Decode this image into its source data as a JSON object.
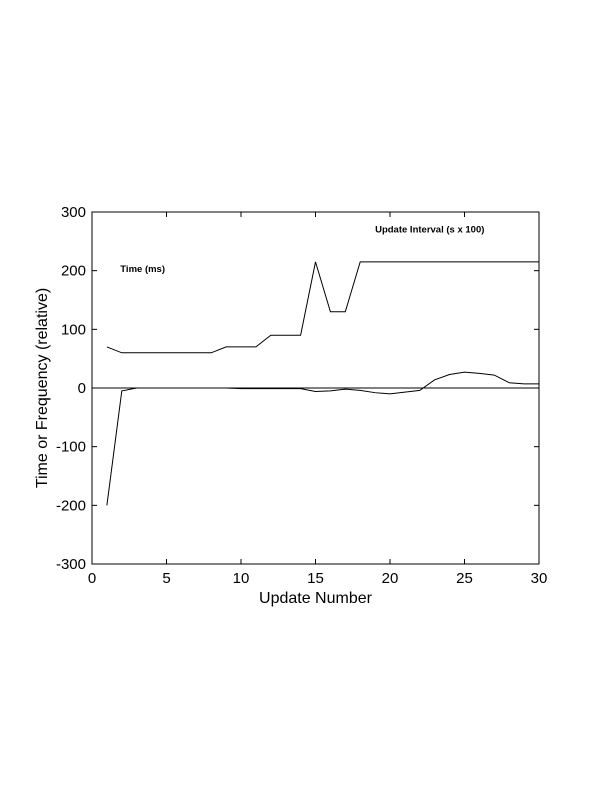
{
  "chart_data": {
    "type": "line",
    "xlabel": "Update Number",
    "ylabel": "Time or Frequency (relative)",
    "xlim": [
      0,
      30
    ],
    "ylim": [
      -300,
      300
    ],
    "xticks": [
      0,
      5,
      10,
      15,
      20,
      25,
      30
    ],
    "yticks": [
      300,
      200,
      100,
      0,
      -100,
      -200,
      -300
    ],
    "grid": false,
    "annotations": [
      {
        "id": "time",
        "text": "Time (ms)",
        "x": 1.9,
        "y": 198
      },
      {
        "id": "update-interval",
        "text": "Update Interval (s x 100)",
        "x": 19,
        "y": 265
      }
    ],
    "series": [
      {
        "x": [
          1,
          2,
          3,
          4,
          5,
          6,
          7,
          8,
          9,
          10,
          11,
          12,
          13,
          14,
          15,
          16,
          17,
          18,
          19,
          20,
          21,
          22,
          23,
          24,
          25,
          26,
          27,
          28,
          29,
          30
        ],
        "values": [
          70,
          60,
          60,
          60,
          60,
          60,
          60,
          60,
          70,
          70,
          70,
          90,
          90,
          90,
          215,
          130,
          130,
          215,
          215,
          215,
          215,
          215,
          215,
          215,
          215,
          215,
          215,
          215,
          215,
          215
        ]
      },
      {
        "x": [
          1,
          2,
          3,
          4,
          5,
          6,
          7,
          8,
          9,
          10,
          11,
          12,
          13,
          14,
          15,
          16,
          17,
          18,
          19,
          20,
          21,
          22,
          23,
          24,
          25,
          26,
          27,
          28,
          29,
          30
        ],
        "values": [
          -200,
          -5,
          0,
          0,
          0,
          0,
          0,
          0,
          0,
          -1,
          -1,
          -1,
          -1,
          -1,
          -6,
          -5,
          -2,
          -4,
          -8,
          -10,
          -7,
          -4,
          14,
          23,
          27,
          25,
          22,
          9,
          7,
          7
        ]
      },
      {
        "x": [
          0,
          30
        ],
        "values": [
          0,
          0
        ]
      }
    ]
  }
}
